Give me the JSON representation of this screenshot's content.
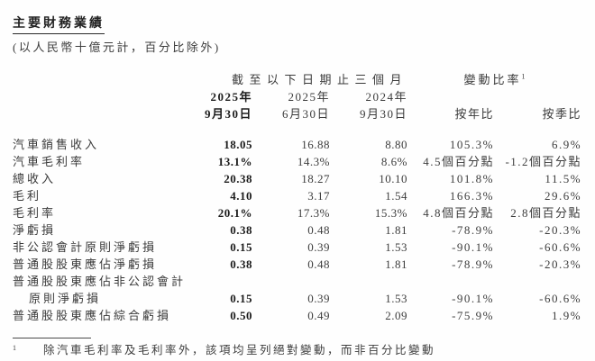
{
  "page": {
    "title": "主要財務業績",
    "subtitle": "(以人民幣十億元計，百分比除外)"
  },
  "table": {
    "header": {
      "period_group": "截至以下日期止三個月",
      "change_group": "變動比率",
      "change_group_sup": "1",
      "columns": [
        {
          "year": "2025年",
          "date": "9月30日"
        },
        {
          "year": "2025年",
          "date": "6月30日"
        },
        {
          "year": "2024年",
          "date": "9月30日"
        }
      ],
      "change_columns": [
        {
          "label": "按年比"
        },
        {
          "label": "按季比"
        }
      ]
    },
    "rows": [
      {
        "label": "汽車銷售收入",
        "v1": "18.05",
        "v2": "16.88",
        "v3": "8.80",
        "yoy": "105.3%",
        "qoq": "6.9%"
      },
      {
        "label": "汽車毛利率",
        "v1": "13.1%",
        "v2": "14.3%",
        "v3": "8.6%",
        "yoy": "4.5個百分點",
        "qoq": "-1.2個百分點"
      },
      {
        "label": "總收入",
        "v1": "20.38",
        "v2": "18.27",
        "v3": "10.10",
        "yoy": "101.8%",
        "qoq": "11.5%"
      },
      {
        "label": "毛利",
        "v1": "4.10",
        "v2": "3.17",
        "v3": "1.54",
        "yoy": "166.3%",
        "qoq": "29.6%"
      },
      {
        "label": "毛利率",
        "v1": "20.1%",
        "v2": "17.3%",
        "v3": "15.3%",
        "yoy": "4.8個百分點",
        "qoq": "2.8個百分點"
      },
      {
        "label": "淨虧損",
        "v1": "0.38",
        "v2": "0.48",
        "v3": "1.81",
        "yoy": "-78.9%",
        "qoq": "-20.3%"
      },
      {
        "label": "非公認會計原則淨虧損",
        "v1": "0.15",
        "v2": "0.39",
        "v3": "1.53",
        "yoy": "-90.1%",
        "qoq": "-60.6%"
      },
      {
        "label": "普通股股東應佔淨虧損",
        "v1": "0.38",
        "v2": "0.48",
        "v3": "1.81",
        "yoy": "-78.9%",
        "qoq": "-20.3%"
      },
      {
        "label": "普通股股東應佔非公認會計",
        "label2": "原則淨虧損",
        "v1": "0.15",
        "v2": "0.39",
        "v3": "1.53",
        "yoy": "-90.1%",
        "qoq": "-60.6%"
      },
      {
        "label": "普通股股東應佔綜合虧損",
        "v1": "0.50",
        "v2": "0.49",
        "v3": "2.09",
        "yoy": "-75.9%",
        "qoq": "1.9%"
      }
    ]
  },
  "footnote": {
    "marker": "1",
    "text": "除汽車毛利率及毛利率外，該項均呈列絕對變動，而非百分比變動"
  },
  "colors": {
    "background": "#fefefe",
    "text": "#3d3d3d",
    "emphasis_text": "#1c1c1c",
    "rule": "#4a4a4a"
  }
}
